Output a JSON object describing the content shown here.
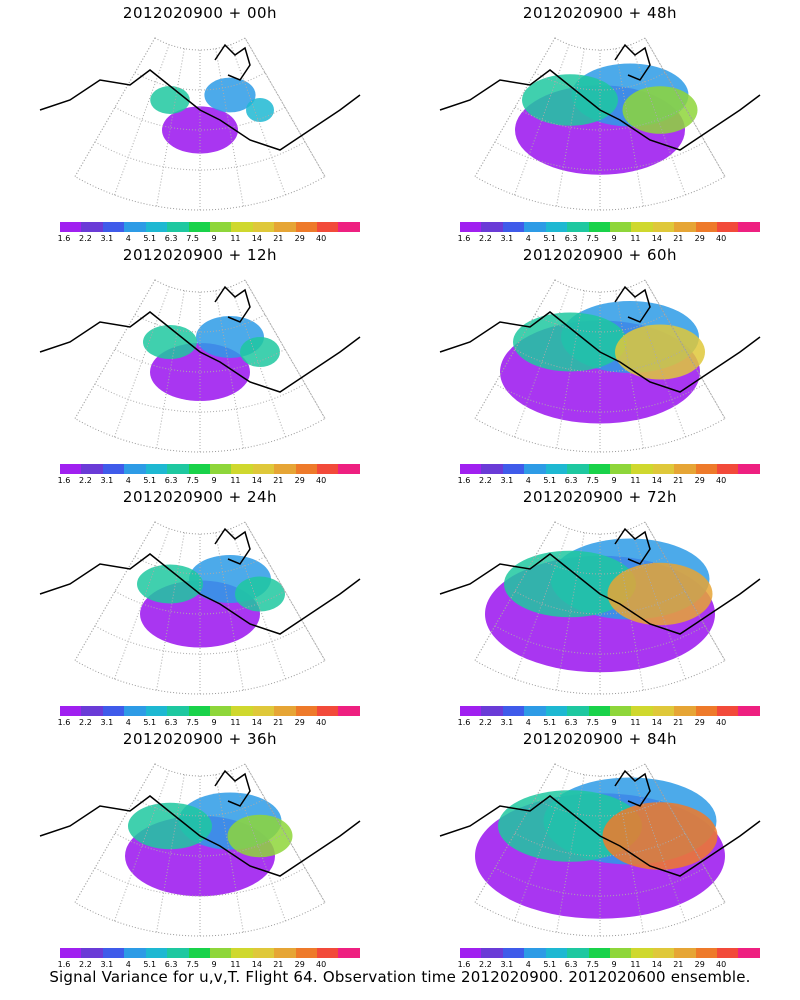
{
  "caption": "Signal Variance for u,v,T. Flight 64. Observation time 2012020900. 2012020600 ensemble.",
  "panels": [
    {
      "title": "2012020900 + 00h",
      "level": 0.08
    },
    {
      "title": "2012020900 + 48h",
      "level": 0.55
    },
    {
      "title": "2012020900 + 12h",
      "level": 0.2
    },
    {
      "title": "2012020900 + 60h",
      "level": 0.7
    },
    {
      "title": "2012020900 + 24h",
      "level": 0.3
    },
    {
      "title": "2012020900 + 72h",
      "level": 0.85
    },
    {
      "title": "2012020900 + 36h",
      "level": 0.45
    },
    {
      "title": "2012020900 + 84h",
      "level": 0.95
    }
  ],
  "colorbar": {
    "labels": [
      "1.6",
      "2.2",
      "3.1",
      "4",
      "5.1",
      "6.3",
      "7.5",
      "9",
      "11",
      "14",
      "21",
      "29",
      "40"
    ],
    "colors": [
      "#a020f0",
      "#6a3bd7",
      "#3f5bea",
      "#2d9be6",
      "#1eb8d2",
      "#1ec8a0",
      "#19d24a",
      "#8ed63a",
      "#cfd82e",
      "#dfc83a",
      "#e6a535",
      "#ee7a2a",
      "#f24a3a",
      "#ee2080"
    ]
  }
}
